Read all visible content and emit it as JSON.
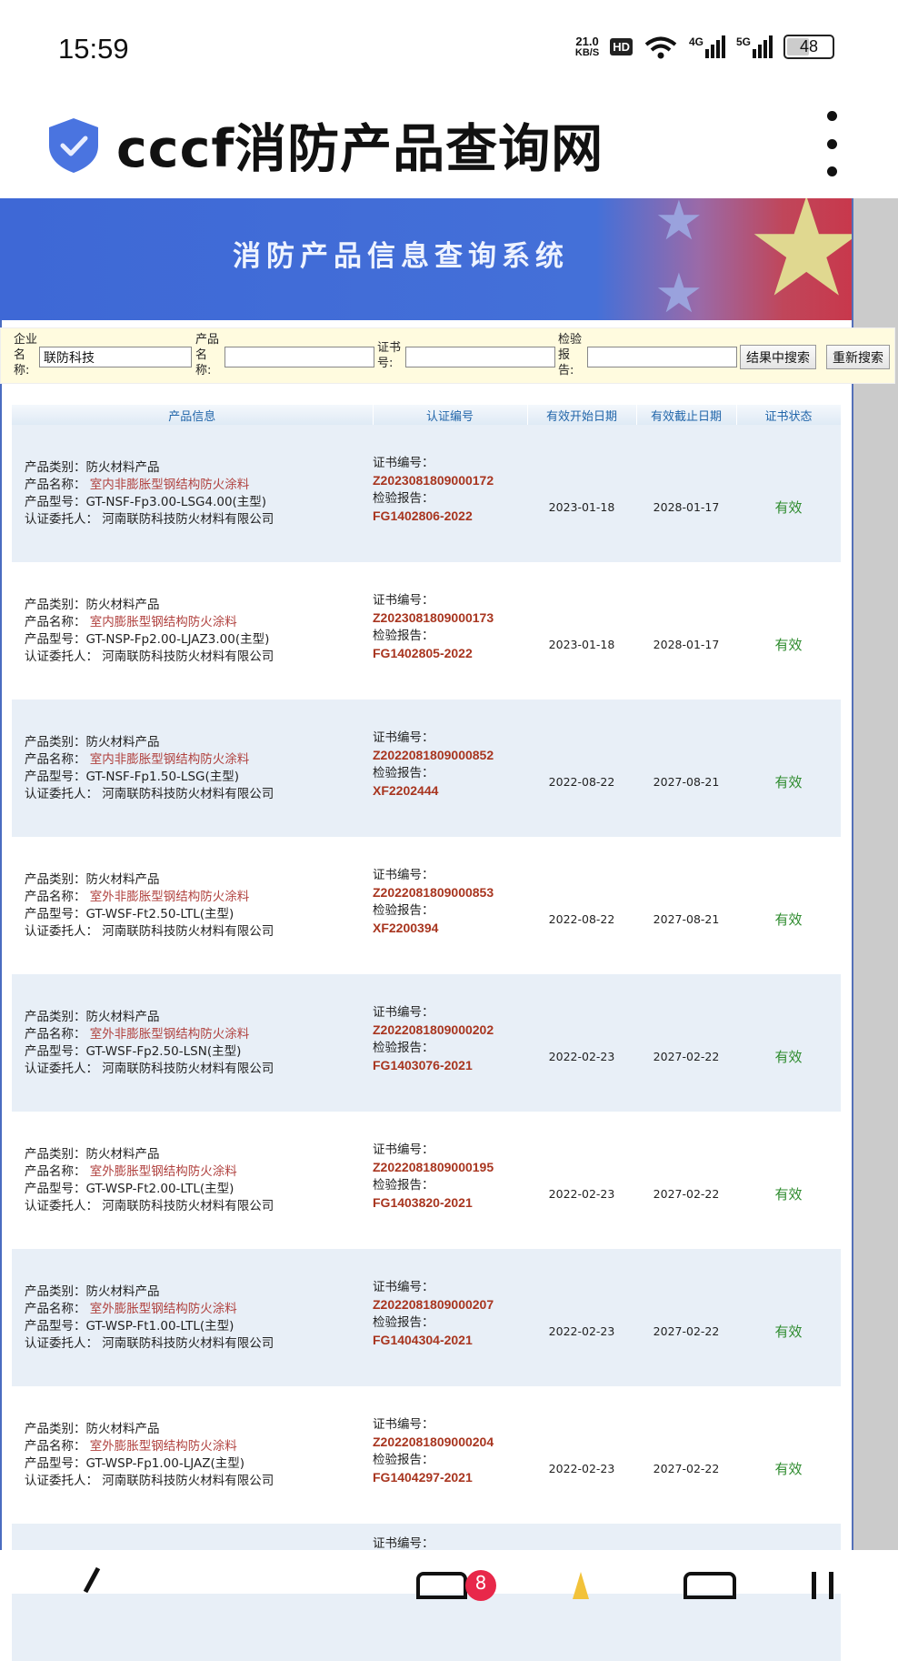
{
  "status_bar": {
    "time": "15:59",
    "net_speed_value": "21.0",
    "net_speed_unit": "KB/S",
    "hd": "HD",
    "net1": "4G",
    "net2": "5G",
    "battery": "48"
  },
  "app": {
    "title": "cccf消防产品查询网",
    "icon": "shield-check-icon",
    "menu_icon": "more-vertical-icon"
  },
  "banner": {
    "title": "消防产品信息查询系统"
  },
  "search": {
    "company_label": "企业名称:",
    "company_value": "联防科技",
    "product_label": "产品名称:",
    "product_value": "",
    "cert_label": "证书号:",
    "cert_value": "",
    "report_label": "检验报告:",
    "report_value": "",
    "search_within_button": "结果中搜索",
    "new_search_button": "重新搜索"
  },
  "table": {
    "headers": [
      "产品信息",
      "认证编号",
      "有效开始日期",
      "有效截止日期",
      "证书状态"
    ],
    "labels": {
      "category": "产品类别：",
      "name": "产品名称：",
      "model": "产品型号：",
      "client": "认证委托人：",
      "cert": "证书编号：",
      "report": "检验报告："
    },
    "rows": [
      {
        "category": "防火材料产品",
        "name": "室内非膨胀型钢结构防火涂料",
        "model": "GT-NSF-Fp3.00-LSG4.00(主型)",
        "client": "河南联防科技防火材料有限公司",
        "cert": "Z2023081809000172",
        "report": "FG1402806-2022",
        "start": "2023-01-18",
        "end": "2028-01-17",
        "status": "有效"
      },
      {
        "category": "防火材料产品",
        "name": "室内膨胀型钢结构防火涂料",
        "model": "GT-NSP-Fp2.00-LJAZ3.00(主型)",
        "client": "河南联防科技防火材料有限公司",
        "cert": "Z2023081809000173",
        "report": "FG1402805-2022",
        "start": "2023-01-18",
        "end": "2028-01-17",
        "status": "有效"
      },
      {
        "category": "防火材料产品",
        "name": "室内非膨胀型钢结构防火涂料",
        "model": "GT-NSF-Fp1.50-LSG(主型)",
        "client": "河南联防科技防火材料有限公司",
        "cert": "Z2022081809000852",
        "report": "XF2202444",
        "start": "2022-08-22",
        "end": "2027-08-21",
        "status": "有效"
      },
      {
        "category": "防火材料产品",
        "name": "室外非膨胀型钢结构防火涂料",
        "model": "GT-WSF-Ft2.50-LTL(主型)",
        "client": "河南联防科技防火材料有限公司",
        "cert": "Z2022081809000853",
        "report": "XF2200394",
        "start": "2022-08-22",
        "end": "2027-08-21",
        "status": "有效"
      },
      {
        "category": "防火材料产品",
        "name": "室外非膨胀型钢结构防火涂料",
        "model": "GT-WSF-Fp2.50-LSN(主型)",
        "client": "河南联防科技防火材料有限公司",
        "cert": "Z2022081809000202",
        "report": "FG1403076-2021",
        "start": "2022-02-23",
        "end": "2027-02-22",
        "status": "有效"
      },
      {
        "category": "防火材料产品",
        "name": "室外膨胀型钢结构防火涂料",
        "model": "GT-WSP-Ft2.00-LTL(主型)",
        "client": "河南联防科技防火材料有限公司",
        "cert": "Z2022081809000195",
        "report": "FG1403820-2021",
        "start": "2022-02-23",
        "end": "2027-02-22",
        "status": "有效"
      },
      {
        "category": "防火材料产品",
        "name": "室外膨胀型钢结构防火涂料",
        "model": "GT-WSP-Ft1.00-LTL(主型)",
        "client": "河南联防科技防火材料有限公司",
        "cert": "Z2022081809000207",
        "report": "FG1404304-2021",
        "start": "2022-02-23",
        "end": "2027-02-22",
        "status": "有效"
      },
      {
        "category": "防火材料产品",
        "name": "室外膨胀型钢结构防火涂料",
        "model": "GT-WSP-Fp1.00-LJAZ(主型)",
        "client": "河南联防科技防火材料有限公司",
        "cert": "Z2022081809000204",
        "report": "FG1404297-2021",
        "start": "2022-02-23",
        "end": "2027-02-22",
        "status": "有效"
      }
    ],
    "partial_row_label": "证书编号："
  },
  "bottom_nav": {
    "badge": "8"
  },
  "colors": {
    "banner_blue": "#4470d8",
    "link_red": "#a8351f",
    "valid_green": "#2e8b2e",
    "header_text": "#2266aa"
  }
}
